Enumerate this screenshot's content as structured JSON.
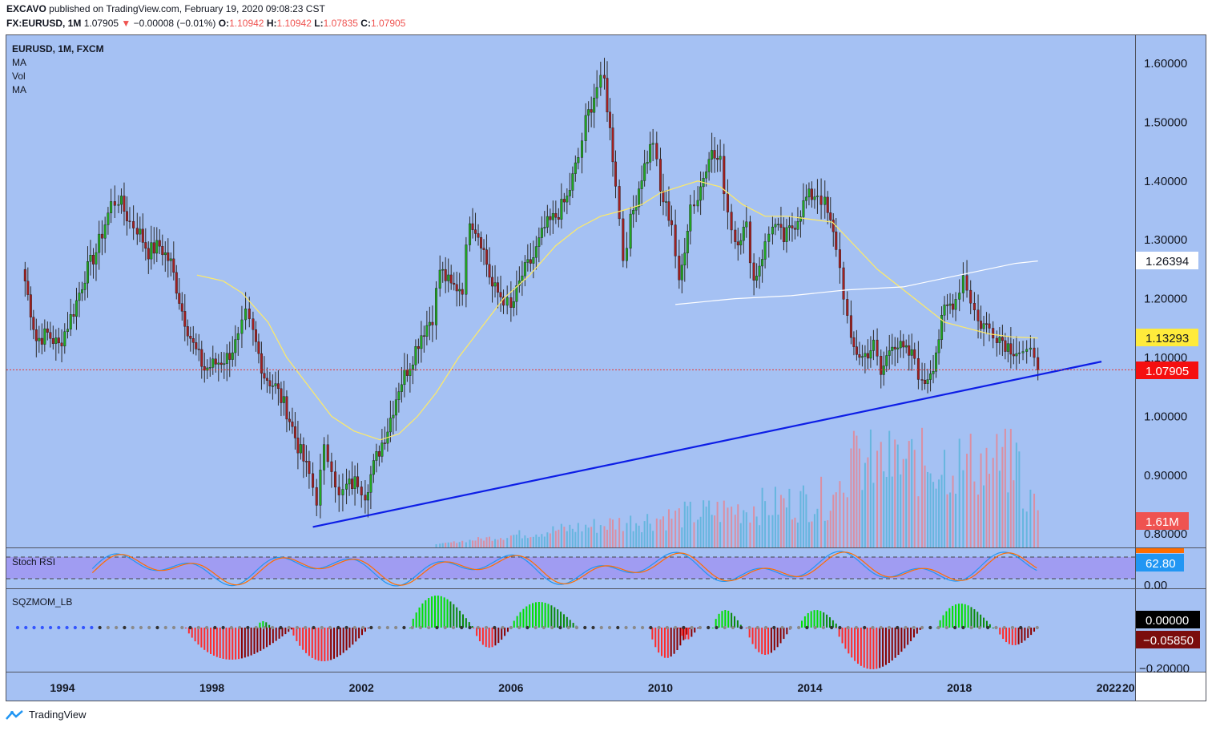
{
  "header": {
    "publisher": "EXCAVO",
    "published_text": "published on TradingView.com, February 19, 2020 09:08:23 CST",
    "symbol": "FX:EURUSD, 1M",
    "last": "1.07905",
    "change": "−0.00008 (−0.01%)",
    "open_label": "O:",
    "open": "1.10942",
    "high_label": "H:",
    "high": "1.10942",
    "low_label": "L:",
    "low": "1.07835",
    "close_label": "C:",
    "close": "1.07905"
  },
  "legend": {
    "title": "EURUSD, 1M, FXCM",
    "items": [
      "MA",
      "Vol",
      "MA"
    ]
  },
  "stoch": {
    "title": "Stoch RSI",
    "value": "62.80",
    "zero": "0.00"
  },
  "sqz": {
    "title": "SQZMOM_LB",
    "zero": "0.00000",
    "value": "−0.05850",
    "tick": "−0.20000"
  },
  "price_badges": {
    "ma_white": "1.26394",
    "ma_yellow": "1.13293",
    "last": "1.07905",
    "volume": "1.61M"
  },
  "colors": {
    "background": "#a5c1f3",
    "up": "#22a722",
    "down": "#a32020",
    "trendline": "#0d1ee6",
    "yellow_badge": "#ffeb3b",
    "red_badge": "#f50f0f",
    "stoch_band": "#a09cf2"
  },
  "footer": {
    "brand": "TradingView"
  },
  "chart_data": {
    "type": "candlestick",
    "symbol": "EURUSD",
    "interval": "1M",
    "y_ticks": [
      "1.60000",
      "1.50000",
      "1.40000",
      "1.30000",
      "1.20000",
      "1.10000",
      "1.00000",
      "0.90000",
      "0.80000"
    ],
    "ylim": [
      0.8,
      1.6
    ],
    "x_ticks": [
      "1994",
      "1998",
      "2002",
      "2006",
      "2010",
      "2014",
      "2018",
      "2022",
      "20"
    ],
    "xlim": [
      1992.5,
      2022.7
    ],
    "close_path": [
      [
        1993.0,
        1.23
      ],
      [
        1993.3,
        1.13
      ],
      [
        1993.6,
        1.14
      ],
      [
        1993.9,
        1.12
      ],
      [
        1994.3,
        1.18
      ],
      [
        1994.6,
        1.24
      ],
      [
        1994.9,
        1.28
      ],
      [
        1995.3,
        1.36
      ],
      [
        1995.5,
        1.37
      ],
      [
        1995.8,
        1.33
      ],
      [
        1996.0,
        1.32
      ],
      [
        1996.3,
        1.28
      ],
      [
        1996.6,
        1.29
      ],
      [
        1996.9,
        1.26
      ],
      [
        1997.2,
        1.18
      ],
      [
        1997.5,
        1.12
      ],
      [
        1997.8,
        1.08
      ],
      [
        1998.1,
        1.09
      ],
      [
        1998.4,
        1.1
      ],
      [
        1998.7,
        1.13
      ],
      [
        1998.9,
        1.17
      ],
      [
        1999.1,
        1.14
      ],
      [
        1999.4,
        1.07
      ],
      [
        1999.7,
        1.05
      ],
      [
        2000.0,
        1.01
      ],
      [
        2000.3,
        0.95
      ],
      [
        2000.6,
        0.9
      ],
      [
        2000.8,
        0.86
      ],
      [
        2001.0,
        0.94
      ],
      [
        2001.2,
        0.92
      ],
      [
        2001.4,
        0.86
      ],
      [
        2001.6,
        0.88
      ],
      [
        2001.9,
        0.89
      ],
      [
        2002.1,
        0.87
      ],
      [
        2002.4,
        0.93
      ],
      [
        2002.7,
        0.98
      ],
      [
        2003.0,
        1.05
      ],
      [
        2003.3,
        1.09
      ],
      [
        2003.6,
        1.14
      ],
      [
        2003.9,
        1.17
      ],
      [
        2004.1,
        1.25
      ],
      [
        2004.4,
        1.22
      ],
      [
        2004.7,
        1.22
      ],
      [
        2004.9,
        1.34
      ],
      [
        2005.2,
        1.3
      ],
      [
        2005.5,
        1.22
      ],
      [
        2005.8,
        1.2
      ],
      [
        2006.0,
        1.18
      ],
      [
        2006.3,
        1.24
      ],
      [
        2006.6,
        1.27
      ],
      [
        2006.9,
        1.32
      ],
      [
        2007.2,
        1.34
      ],
      [
        2007.5,
        1.37
      ],
      [
        2007.8,
        1.44
      ],
      [
        2008.0,
        1.5
      ],
      [
        2008.3,
        1.56
      ],
      [
        2008.5,
        1.57
      ],
      [
        2008.8,
        1.4
      ],
      [
        2009.0,
        1.27
      ],
      [
        2009.2,
        1.33
      ],
      [
        2009.5,
        1.41
      ],
      [
        2009.8,
        1.47
      ],
      [
        2010.0,
        1.38
      ],
      [
        2010.3,
        1.33
      ],
      [
        2010.5,
        1.22
      ],
      [
        2010.8,
        1.36
      ],
      [
        2011.0,
        1.37
      ],
      [
        2011.3,
        1.45
      ],
      [
        2011.6,
        1.43
      ],
      [
        2011.8,
        1.35
      ],
      [
        2012.0,
        1.3
      ],
      [
        2012.3,
        1.32
      ],
      [
        2012.5,
        1.23
      ],
      [
        2012.8,
        1.29
      ],
      [
        2013.0,
        1.33
      ],
      [
        2013.3,
        1.3
      ],
      [
        2013.6,
        1.33
      ],
      [
        2013.9,
        1.37
      ],
      [
        2014.2,
        1.38
      ],
      [
        2014.4,
        1.36
      ],
      [
        2014.7,
        1.29
      ],
      [
        2014.9,
        1.21
      ],
      [
        2015.1,
        1.12
      ],
      [
        2015.4,
        1.1
      ],
      [
        2015.7,
        1.12
      ],
      [
        2015.9,
        1.07
      ],
      [
        2016.2,
        1.13
      ],
      [
        2016.5,
        1.11
      ],
      [
        2016.8,
        1.1
      ],
      [
        2017.0,
        1.05
      ],
      [
        2017.3,
        1.09
      ],
      [
        2017.6,
        1.18
      ],
      [
        2017.9,
        1.2
      ],
      [
        2018.1,
        1.24
      ],
      [
        2018.3,
        1.2
      ],
      [
        2018.5,
        1.16
      ],
      [
        2018.8,
        1.15
      ],
      [
        2019.0,
        1.14
      ],
      [
        2019.3,
        1.12
      ],
      [
        2019.6,
        1.11
      ],
      [
        2019.8,
        1.1
      ],
      [
        2020.0,
        1.11
      ],
      [
        2020.1,
        1.079
      ]
    ],
    "trendline": [
      [
        2000.7,
        0.812
      ],
      [
        2021.8,
        1.093
      ]
    ],
    "ma_white": [
      [
        2010.4,
        1.19
      ],
      [
        2012.0,
        1.2
      ],
      [
        2013.5,
        1.205
      ],
      [
        2015.0,
        1.215
      ],
      [
        2016.5,
        1.22
      ],
      [
        2018.0,
        1.24
      ],
      [
        2019.5,
        1.26
      ],
      [
        2020.1,
        1.264
      ]
    ],
    "ma_yellow": [
      [
        1997.6,
        1.24
      ],
      [
        1998.3,
        1.23
      ],
      [
        1998.8,
        1.21
      ],
      [
        1999.5,
        1.16
      ],
      [
        2000.0,
        1.1
      ],
      [
        2000.6,
        1.05
      ],
      [
        2001.2,
        1.0
      ],
      [
        2001.8,
        0.975
      ],
      [
        2002.5,
        0.96
      ],
      [
        2003.0,
        0.97
      ],
      [
        2003.5,
        1.0
      ],
      [
        2004.0,
        1.04
      ],
      [
        2004.6,
        1.1
      ],
      [
        2005.2,
        1.15
      ],
      [
        2005.8,
        1.2
      ],
      [
        2006.5,
        1.24
      ],
      [
        2007.2,
        1.29
      ],
      [
        2007.8,
        1.32
      ],
      [
        2008.4,
        1.34
      ],
      [
        2009.0,
        1.35
      ],
      [
        2009.5,
        1.36
      ],
      [
        2010.0,
        1.38
      ],
      [
        2010.5,
        1.39
      ],
      [
        2011.0,
        1.4
      ],
      [
        2011.6,
        1.39
      ],
      [
        2012.2,
        1.36
      ],
      [
        2012.8,
        1.34
      ],
      [
        2013.4,
        1.34
      ],
      [
        2014.0,
        1.335
      ],
      [
        2014.6,
        1.33
      ],
      [
        2015.2,
        1.29
      ],
      [
        2015.8,
        1.25
      ],
      [
        2016.4,
        1.22
      ],
      [
        2017.0,
        1.19
      ],
      [
        2017.6,
        1.16
      ],
      [
        2018.2,
        1.15
      ],
      [
        2018.8,
        1.14
      ],
      [
        2019.4,
        1.135
      ],
      [
        2020.1,
        1.133
      ]
    ],
    "last_price": 1.07905
  }
}
